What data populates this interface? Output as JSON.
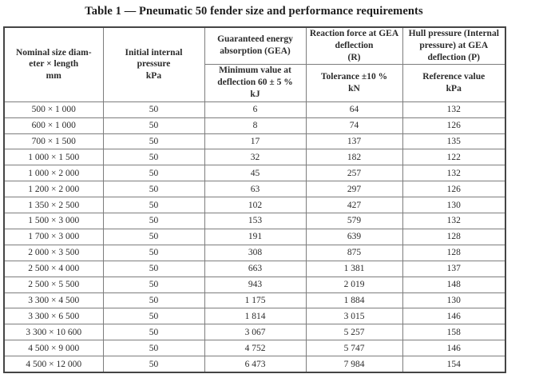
{
  "title": "Table 1 — Pneumatic 50 fender size and performance requirements",
  "table": {
    "header": {
      "col1": "Nominal size diam-\neter × length\nmm",
      "col2": "Initial internal\npressure\nkPa",
      "col3_top": "Guaranteed energy\nabsorption (GEA)",
      "col3_sub": "Minimum value at\ndeflection 60 ± 5 %\nkJ",
      "col4_top": "Reaction force at GEA\ndeflection\n(R)",
      "col4_sub": "Tolerance ±10 %\nkN",
      "col5_top": "Hull pressure (Internal\npressure) at GEA\ndeflection (P)",
      "col5_sub": "Reference value\nkPa"
    },
    "rows": [
      [
        "500 × 1 000",
        "50",
        "6",
        "64",
        "132"
      ],
      [
        "600 × 1 000",
        "50",
        "8",
        "74",
        "126"
      ],
      [
        "700 × 1 500",
        "50",
        "17",
        "137",
        "135"
      ],
      [
        "1 000 × 1 500",
        "50",
        "32",
        "182",
        "122"
      ],
      [
        "1 000 × 2 000",
        "50",
        "45",
        "257",
        "132"
      ],
      [
        "1 200 × 2 000",
        "50",
        "63",
        "297",
        "126"
      ],
      [
        "1 350 × 2 500",
        "50",
        "102",
        "427",
        "130"
      ],
      [
        "1 500 × 3 000",
        "50",
        "153",
        "579",
        "132"
      ],
      [
        "1 700 × 3 000",
        "50",
        "191",
        "639",
        "128"
      ],
      [
        "2 000 × 3 500",
        "50",
        "308",
        "875",
        "128"
      ],
      [
        "2 500 × 4 000",
        "50",
        "663",
        "1 381",
        "137"
      ],
      [
        "2 500 × 5 500",
        "50",
        "943",
        "2 019",
        "148"
      ],
      [
        "3 300 × 4 500",
        "50",
        "1 175",
        "1 884",
        "130"
      ],
      [
        "3 300 × 6 500",
        "50",
        "1 814",
        "3 015",
        "146"
      ],
      [
        "3 300 × 10 600",
        "50",
        "3 067",
        "5 257",
        "158"
      ],
      [
        "4 500 × 9 000",
        "50",
        "4 752",
        "5 747",
        "146"
      ],
      [
        "4 500 × 12 000",
        "50",
        "6 473",
        "7 984",
        "154"
      ]
    ]
  }
}
